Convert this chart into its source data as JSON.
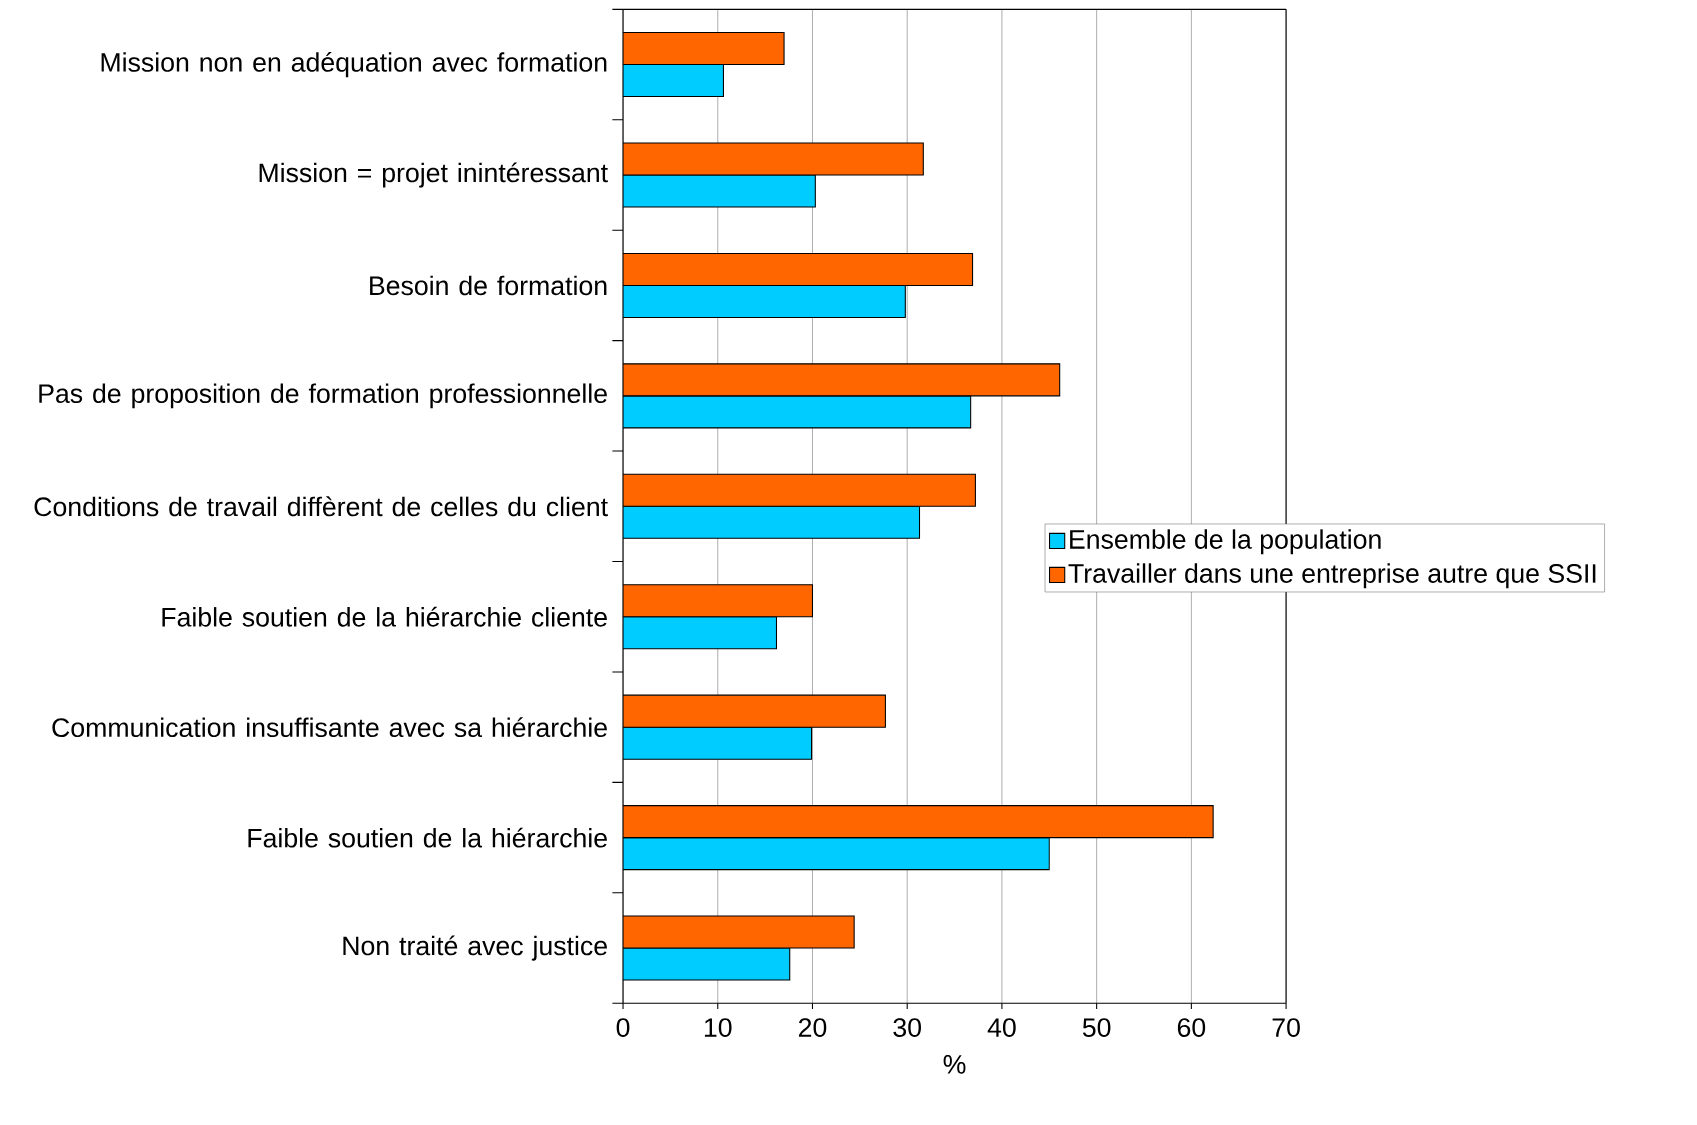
{
  "chart_data": {
    "type": "bar",
    "orientation": "horizontal",
    "categories": [
      "Mission non en adéquation avec formation",
      "Mission = projet inintéressant",
      "Besoin de formation",
      "Pas de proposition de formation professionnelle",
      "Conditions de travail diffèrent de celles du client",
      "Faible soutien de la hiérarchie cliente",
      "Communication insuffisante avec sa hiérarchie",
      "Faible soutien de la hiérarchie",
      "Non traité avec justice"
    ],
    "series": [
      {
        "name": "Ensemble de la population",
        "color": "#00ccff",
        "values": [
          10.6,
          20.3,
          29.8,
          36.7,
          31.3,
          16.2,
          19.9,
          45.0,
          17.6
        ]
      },
      {
        "name": "Travailler dans une entreprise autre que SSII",
        "color": "#ff6600",
        "values": [
          17.0,
          31.7,
          36.9,
          46.1,
          37.2,
          20.0,
          27.7,
          62.3,
          24.4
        ]
      }
    ],
    "xlim": [
      0,
      70
    ],
    "xticks": [
      0,
      10,
      20,
      30,
      40,
      50,
      60,
      70
    ],
    "xlabel": "%",
    "grid": "x",
    "legend": "right"
  }
}
